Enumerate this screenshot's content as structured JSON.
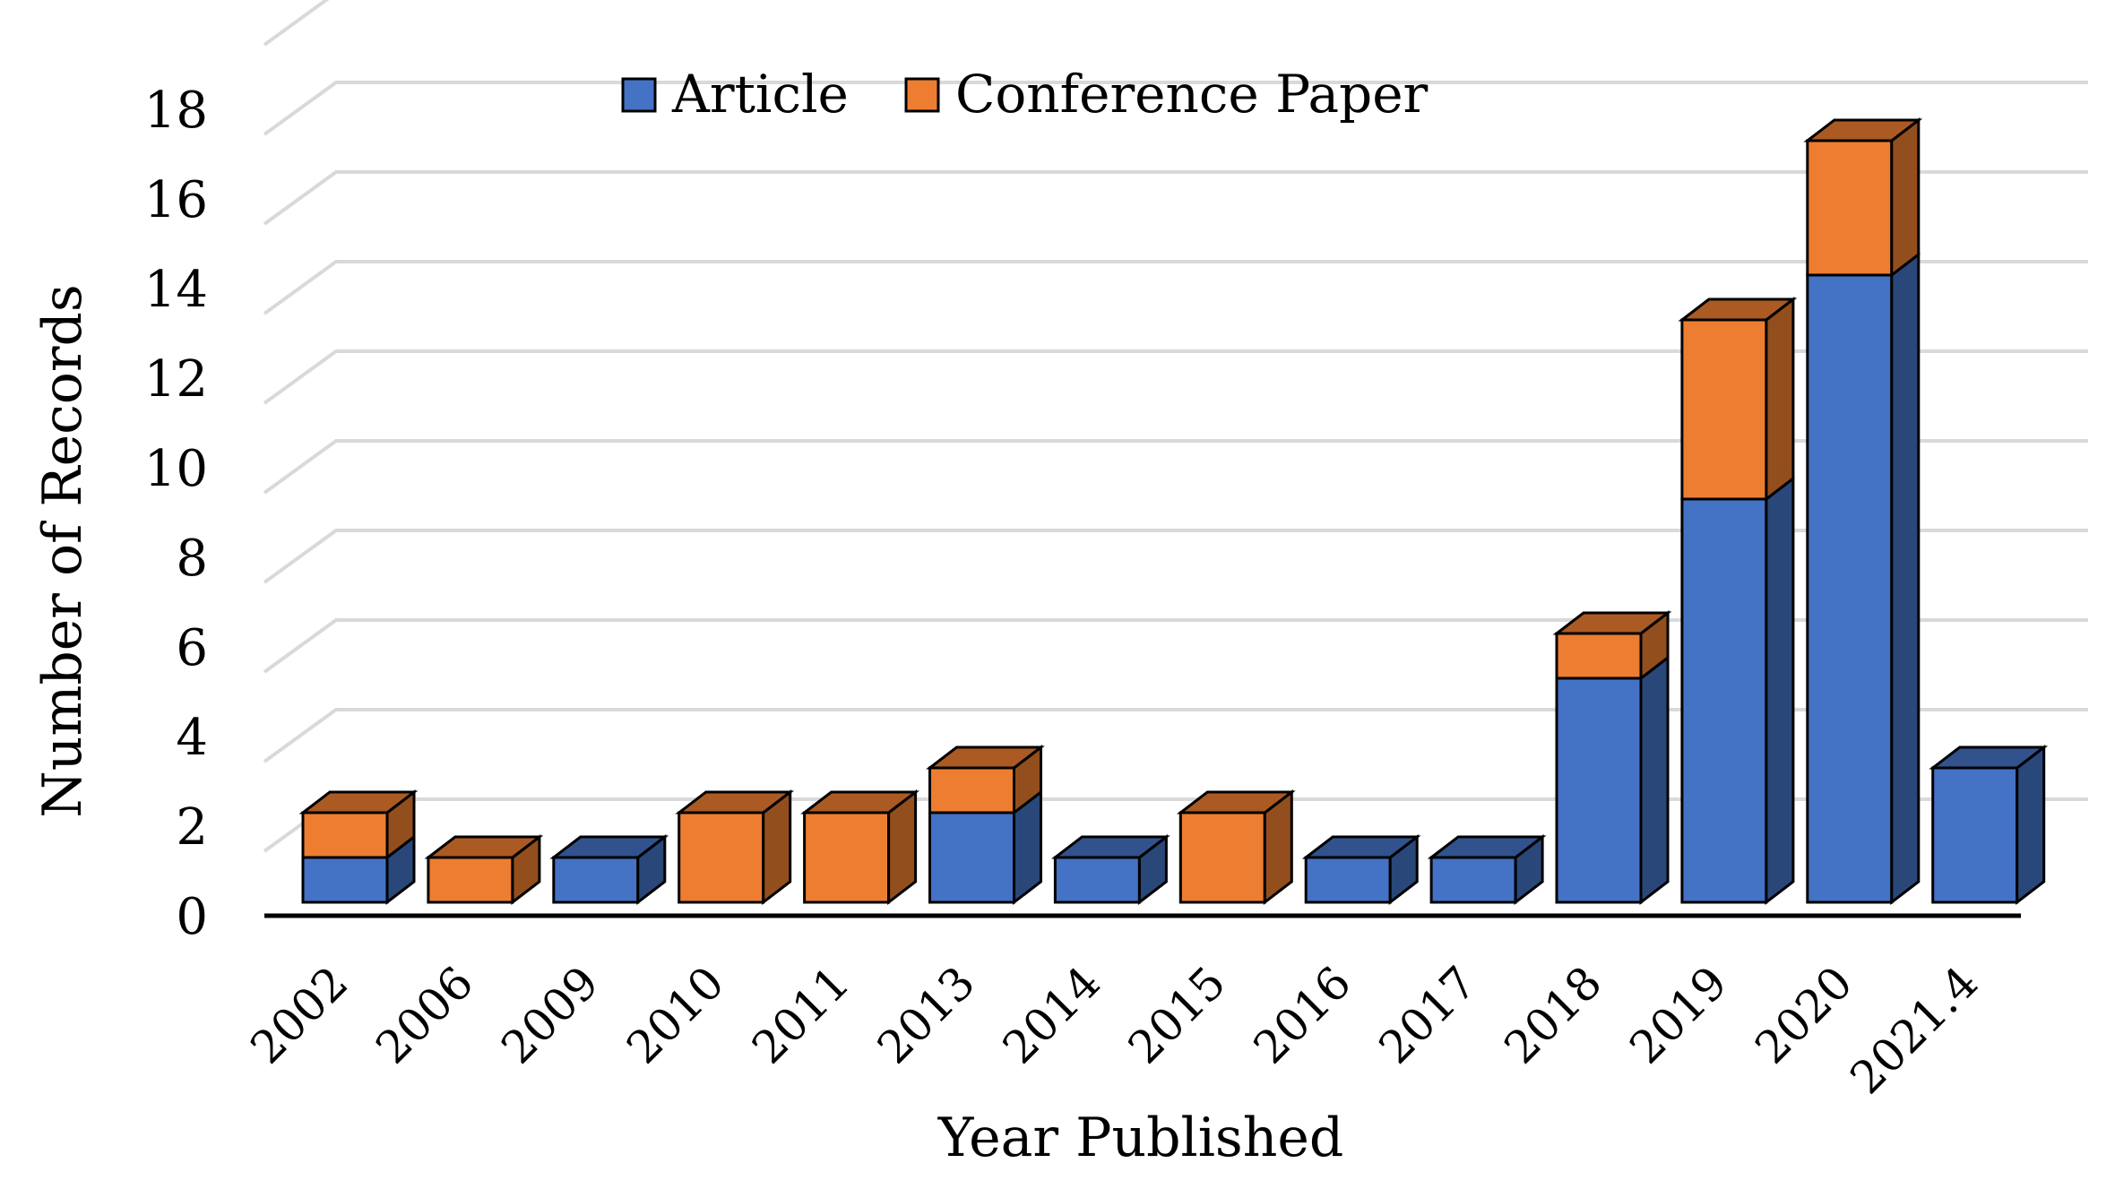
{
  "chart_data": {
    "type": "bar",
    "stacked": true,
    "style": "3d",
    "categories": [
      "2002",
      "2006",
      "2009",
      "2010",
      "2011",
      "2013",
      "2014",
      "2015",
      "2016",
      "2017",
      "2018",
      "2019",
      "2020",
      "2021.4"
    ],
    "series": [
      {
        "name": "Article",
        "color": "#4472C4",
        "values": [
          1,
          0,
          1,
          0,
          0,
          2,
          1,
          0,
          1,
          1,
          5,
          9,
          14,
          3
        ]
      },
      {
        "name": "Conference Paper",
        "color": "#ED7D31",
        "values": [
          1,
          1,
          0,
          2,
          2,
          1,
          0,
          2,
          0,
          0,
          1,
          4,
          3,
          0
        ]
      }
    ],
    "xlabel": "Year Published",
    "ylabel": "Number of Records",
    "ylim": [
      0,
      18
    ],
    "yticks": [
      "0",
      "2",
      "4",
      "6",
      "8",
      "10",
      "12",
      "14",
      "16",
      "18"
    ],
    "grid": true,
    "legend_position": "top"
  }
}
